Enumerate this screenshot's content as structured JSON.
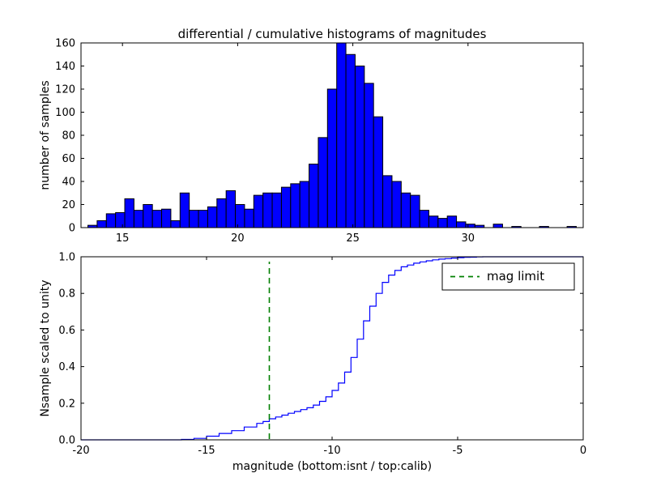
{
  "figure": {
    "background": "#ffffff"
  },
  "chart_data": [
    {
      "id": "top",
      "type": "bar",
      "title": "differential / cumulative histograms of magnitudes",
      "ylabel": "number of samples",
      "xlim": [
        13.2,
        35.0
      ],
      "ylim": [
        0,
        160
      ],
      "xticks": [
        15,
        20,
        25,
        30
      ],
      "xticklabels": [
        "15",
        "20",
        "25",
        "30"
      ],
      "yticks": [
        0,
        20,
        40,
        60,
        80,
        100,
        120,
        140,
        160
      ],
      "yticklabels": [
        "0",
        "20",
        "40",
        "60",
        "80",
        "100",
        "120",
        "140",
        "160"
      ],
      "bar_color": "#0000ff",
      "bar_edge": "#000000",
      "grid": false,
      "bin_start": 13.5,
      "bin_width": 0.4,
      "counts": [
        2,
        6,
        12,
        13,
        25,
        15,
        20,
        15,
        16,
        6,
        30,
        15,
        15,
        18,
        25,
        32,
        20,
        16,
        28,
        30,
        30,
        35,
        38,
        40,
        55,
        78,
        120,
        160,
        150,
        140,
        125,
        96,
        45,
        40,
        30,
        28,
        15,
        10,
        8,
        10,
        5,
        3,
        2,
        0,
        3,
        0,
        1,
        0,
        0,
        1,
        0,
        0,
        1
      ]
    },
    {
      "id": "bottom",
      "type": "line",
      "line_style": "step-cumulative",
      "ylabel": "Nsample scaled to unity",
      "xlabel": "magnitude (bottom:isnt / top:calib)",
      "xlim": [
        -20,
        0
      ],
      "ylim": [
        0,
        1.0
      ],
      "xticks": [
        -20,
        -15,
        -10,
        -5,
        0
      ],
      "xticklabels": [
        "-20",
        "-15",
        "-10",
        "-5",
        "0"
      ],
      "yticks": [
        0.0,
        0.2,
        0.4,
        0.6,
        0.8,
        1.0
      ],
      "yticklabels": [
        "0.0",
        "0.2",
        "0.4",
        "0.6",
        "0.8",
        "1.0"
      ],
      "line_color": "#0000ff",
      "grid": false,
      "steps": [
        [
          -16.0,
          0.002
        ],
        [
          -15.5,
          0.008
        ],
        [
          -15.0,
          0.02
        ],
        [
          -14.5,
          0.035
        ],
        [
          -14.0,
          0.05
        ],
        [
          -13.5,
          0.07
        ],
        [
          -13.0,
          0.09
        ],
        [
          -12.75,
          0.1
        ],
        [
          -12.5,
          0.115
        ],
        [
          -12.25,
          0.125
        ],
        [
          -12.0,
          0.135
        ],
        [
          -11.75,
          0.145
        ],
        [
          -11.5,
          0.155
        ],
        [
          -11.25,
          0.165
        ],
        [
          -11.0,
          0.175
        ],
        [
          -10.75,
          0.19
        ],
        [
          -10.5,
          0.21
        ],
        [
          -10.25,
          0.235
        ],
        [
          -10.0,
          0.27
        ],
        [
          -9.75,
          0.31
        ],
        [
          -9.5,
          0.37
        ],
        [
          -9.25,
          0.45
        ],
        [
          -9.0,
          0.55
        ],
        [
          -8.75,
          0.65
        ],
        [
          -8.5,
          0.73
        ],
        [
          -8.25,
          0.8
        ],
        [
          -8.0,
          0.86
        ],
        [
          -7.75,
          0.9
        ],
        [
          -7.5,
          0.925
        ],
        [
          -7.25,
          0.945
        ],
        [
          -7.0,
          0.955
        ],
        [
          -6.75,
          0.965
        ],
        [
          -6.5,
          0.972
        ],
        [
          -6.25,
          0.978
        ],
        [
          -6.0,
          0.983
        ],
        [
          -5.75,
          0.987
        ],
        [
          -5.5,
          0.99
        ],
        [
          -5.25,
          0.993
        ],
        [
          -5.0,
          0.995
        ],
        [
          -4.75,
          0.997
        ],
        [
          -4.5,
          0.998
        ],
        [
          -4.25,
          0.999
        ],
        [
          -4.0,
          1.0
        ]
      ],
      "mag_limit": {
        "x": -12.5,
        "color": "#008000",
        "style": "dashed",
        "label": "mag limit"
      },
      "legend": {
        "position": "upper right",
        "entries": [
          {
            "label": "mag limit",
            "color": "#008000",
            "dashed": true
          }
        ]
      }
    }
  ]
}
